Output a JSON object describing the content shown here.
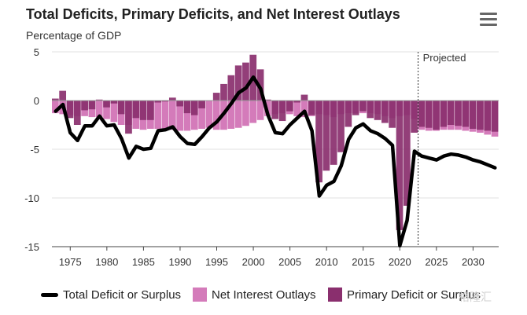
{
  "header": {
    "title": "Total Deficits, Primary Deficits, and Net Interest Outlays",
    "subtitle": "Percentage of GDP"
  },
  "annotation": "Projected",
  "legend": {
    "total": "Total Deficit or Surplus",
    "interest": "Net Interest Outlays",
    "primary": "Primary Deficit or Surplus"
  },
  "watermark": "格隆汇",
  "colors": {
    "interest": "#d47bba",
    "primary": "#8a2f6e",
    "total": "#000000",
    "grid": "#e0e0e0",
    "axis": "#444444"
  },
  "chart_data": {
    "type": "bar",
    "note": "stacked bars (net interest + primary) with total deficit line",
    "xlim": [
      1973,
      2033
    ],
    "ylim": [
      -15,
      5
    ],
    "yticks": [
      5,
      0,
      -5,
      -10,
      -15
    ],
    "xticks": [
      1975,
      1980,
      1985,
      1990,
      1995,
      2000,
      2005,
      2010,
      2015,
      2020,
      2025,
      2030
    ],
    "projected_start": 2023,
    "years": [
      1973,
      1974,
      1975,
      1976,
      1977,
      1978,
      1979,
      1980,
      1981,
      1982,
      1983,
      1984,
      1985,
      1986,
      1987,
      1988,
      1989,
      1990,
      1991,
      1992,
      1993,
      1994,
      1995,
      1996,
      1997,
      1998,
      1999,
      2000,
      2001,
      2002,
      2003,
      2004,
      2005,
      2006,
      2007,
      2008,
      2009,
      2010,
      2011,
      2012,
      2013,
      2014,
      2015,
      2016,
      2017,
      2018,
      2019,
      2020,
      2021,
      2022,
      2023,
      2024,
      2025,
      2026,
      2027,
      2028,
      2029,
      2030,
      2031,
      2032,
      2033
    ],
    "series": [
      {
        "name": "Total Deficit or Surplus",
        "values": [
          -1.1,
          -0.4,
          -3.3,
          -4.1,
          -2.6,
          -2.6,
          -1.6,
          -2.6,
          -2.5,
          -3.9,
          -5.9,
          -4.7,
          -5.0,
          -4.9,
          -3.1,
          -3.0,
          -2.7,
          -3.7,
          -4.4,
          -4.5,
          -3.7,
          -2.8,
          -2.2,
          -1.3,
          -0.3,
          0.8,
          1.3,
          2.4,
          1.2,
          -1.5,
          -3.3,
          -3.4,
          -2.5,
          -1.8,
          -1.1,
          -3.1,
          -9.8,
          -8.7,
          -8.3,
          -6.7,
          -4.0,
          -2.8,
          -2.4,
          -3.1,
          -3.4,
          -3.9,
          -4.6,
          -14.9,
          -12.3,
          -5.2,
          -5.7,
          -5.9,
          -6.1,
          -5.7,
          -5.5,
          -5.6,
          -5.8,
          -6.1,
          -6.3,
          -6.6,
          -6.9
        ]
      },
      {
        "name": "Net Interest Outlays",
        "values": [
          -1.3,
          -1.4,
          -1.5,
          -1.6,
          -1.6,
          -1.7,
          -1.7,
          -1.9,
          -2.2,
          -2.5,
          -2.5,
          -2.9,
          -3.0,
          -2.9,
          -2.9,
          -2.9,
          -3.0,
          -3.1,
          -3.1,
          -3.0,
          -2.9,
          -2.8,
          -3.0,
          -3.0,
          -2.9,
          -2.8,
          -2.6,
          -2.3,
          -2.0,
          -1.6,
          -1.4,
          -1.3,
          -1.4,
          -1.6,
          -1.7,
          -1.6,
          -1.4,
          -1.5,
          -1.7,
          -1.4,
          -1.3,
          -1.3,
          -1.3,
          -1.3,
          -1.4,
          -1.6,
          -1.8,
          -1.6,
          -1.5,
          -1.9,
          -3.0,
          -3.1,
          -3.1,
          -3.0,
          -3.0,
          -3.0,
          -3.1,
          -3.2,
          -3.3,
          -3.5,
          -3.7
        ]
      },
      {
        "name": "Primary Deficit or Surplus",
        "values": [
          0.2,
          1.0,
          -1.8,
          -2.5,
          -1.0,
          -0.9,
          0.1,
          -0.7,
          -0.3,
          -1.4,
          -3.4,
          -1.8,
          -2.0,
          -2.0,
          -0.2,
          -0.1,
          0.3,
          -0.6,
          -1.3,
          -1.5,
          -0.8,
          0.0,
          0.8,
          1.7,
          2.6,
          3.6,
          3.9,
          4.7,
          3.2,
          0.1,
          -1.9,
          -2.1,
          -1.1,
          -0.2,
          0.6,
          -1.5,
          -8.4,
          -7.2,
          -6.6,
          -5.3,
          -2.7,
          -1.5,
          -1.1,
          -1.8,
          -2.0,
          -2.3,
          -2.8,
          -13.3,
          -10.8,
          -3.3,
          -2.7,
          -2.8,
          -3.0,
          -2.7,
          -2.5,
          -2.6,
          -2.7,
          -2.9,
          -3.0,
          -3.1,
          -3.2
        ]
      }
    ]
  }
}
